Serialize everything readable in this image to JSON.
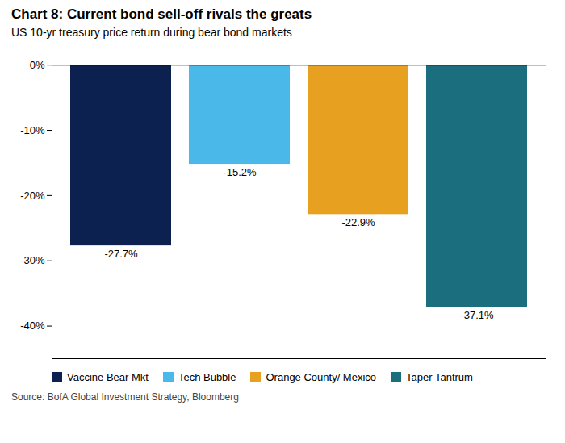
{
  "chart_data": {
    "type": "bar",
    "title": "Chart 8: Current bond sell-off rivals the greats",
    "subtitle": "US 10-yr treasury price return during bear bond markets",
    "source": "Source: BofA Global Investment Strategy, Bloomberg",
    "categories": [
      "Vaccine Bear Mkt",
      "Tech Bubble",
      "Orange County/ Mexico",
      "Taper Tantrum"
    ],
    "values": [
      -27.7,
      -15.2,
      -22.9,
      -37.1
    ],
    "value_labels": [
      "-27.7%",
      "-15.2%",
      "-22.9%",
      "-37.1%"
    ],
    "colors": [
      "#0d2150",
      "#4ab8e8",
      "#e8a020",
      "#1a6e7e"
    ],
    "ylim": [
      -45,
      2
    ],
    "yticks": [
      {
        "value": 0,
        "label": "0%"
      },
      {
        "value": -10,
        "label": "-10%"
      },
      {
        "value": -20,
        "label": "-20%"
      },
      {
        "value": -30,
        "label": "-30%"
      },
      {
        "value": -40,
        "label": "-40%"
      }
    ],
    "data_labels": true,
    "tick_labels": "y",
    "grid": false,
    "legend": "lower left"
  }
}
